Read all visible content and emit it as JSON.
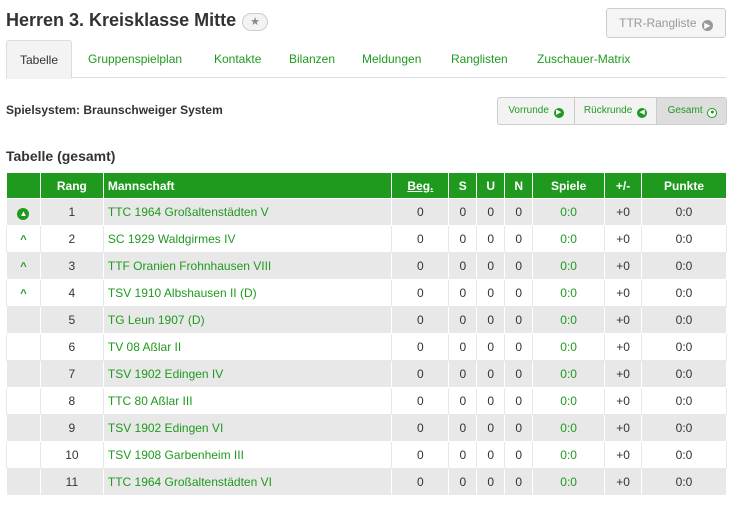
{
  "page_title": "Herren 3. Kreisklasse Mitte",
  "ttr_button_label": "TTR-Rangliste",
  "tabs": [
    {
      "label": "Tabelle"
    },
    {
      "label": "Gruppenspielplan"
    },
    {
      "label": "Kontakte"
    },
    {
      "label": "Bilanzen"
    },
    {
      "label": "Meldungen"
    },
    {
      "label": "Ranglisten"
    },
    {
      "label": "Zuschauer-Matrix"
    }
  ],
  "spielsystem": "Spielsystem: Braunschweiger System",
  "round_buttons": [
    {
      "label": "Vorrunde",
      "icon": "arrow-right-circle-icon"
    },
    {
      "label": "Rückrunde",
      "icon": "arrow-left-circle-icon"
    },
    {
      "label": "Gesamt",
      "icon": "dot-circle-icon"
    }
  ],
  "section_title": "Tabelle (gesamt)",
  "table": {
    "headers": [
      "",
      "Rang",
      "Mannschaft",
      "Beg.",
      "S",
      "U",
      "N",
      "Spiele",
      "+/-",
      "Punkte"
    ],
    "rows": [
      {
        "indicator": "circle-up",
        "rang": "1",
        "team": "TTC 1964 Großaltenstädten V",
        "beg": "0",
        "s": "0",
        "u": "0",
        "n": "0",
        "spiele": "0:0",
        "diff": "+0",
        "punkte": "0:0"
      },
      {
        "indicator": "up",
        "rang": "2",
        "team": "SC 1929 Waldgirmes IV",
        "beg": "0",
        "s": "0",
        "u": "0",
        "n": "0",
        "spiele": "0:0",
        "diff": "+0",
        "punkte": "0:0"
      },
      {
        "indicator": "up",
        "rang": "3",
        "team": "TTF Oranien Frohnhausen VIII",
        "beg": "0",
        "s": "0",
        "u": "0",
        "n": "0",
        "spiele": "0:0",
        "diff": "+0",
        "punkte": "0:0"
      },
      {
        "indicator": "up",
        "rang": "4",
        "team": "TSV 1910 Albshausen II (D)",
        "beg": "0",
        "s": "0",
        "u": "0",
        "n": "0",
        "spiele": "0:0",
        "diff": "+0",
        "punkte": "0:0"
      },
      {
        "indicator": "",
        "rang": "5",
        "team": "TG Leun 1907 (D)",
        "beg": "0",
        "s": "0",
        "u": "0",
        "n": "0",
        "spiele": "0:0",
        "diff": "+0",
        "punkte": "0:0"
      },
      {
        "indicator": "",
        "rang": "6",
        "team": "TV 08 Aßlar II",
        "beg": "0",
        "s": "0",
        "u": "0",
        "n": "0",
        "spiele": "0:0",
        "diff": "+0",
        "punkte": "0:0"
      },
      {
        "indicator": "",
        "rang": "7",
        "team": "TSV 1902 Edingen IV",
        "beg": "0",
        "s": "0",
        "u": "0",
        "n": "0",
        "spiele": "0:0",
        "diff": "+0",
        "punkte": "0:0"
      },
      {
        "indicator": "",
        "rang": "8",
        "team": "TTC 80 Aßlar III",
        "beg": "0",
        "s": "0",
        "u": "0",
        "n": "0",
        "spiele": "0:0",
        "diff": "+0",
        "punkte": "0:0"
      },
      {
        "indicator": "",
        "rang": "9",
        "team": "TSV 1902 Edingen VI",
        "beg": "0",
        "s": "0",
        "u": "0",
        "n": "0",
        "spiele": "0:0",
        "diff": "+0",
        "punkte": "0:0"
      },
      {
        "indicator": "",
        "rang": "10",
        "team": "TSV 1908 Garbenheim III",
        "beg": "0",
        "s": "0",
        "u": "0",
        "n": "0",
        "spiele": "0:0",
        "diff": "+0",
        "punkte": "0:0"
      },
      {
        "indicator": "",
        "rang": "11",
        "team": "TTC 1964 Großaltenstädten VI",
        "beg": "0",
        "s": "0",
        "u": "0",
        "n": "0",
        "spiele": "0:0",
        "diff": "+0",
        "punkte": "0:0"
      }
    ]
  },
  "colors": {
    "accent": "#1f9a1f",
    "row_alt": "#e8e8e8"
  }
}
